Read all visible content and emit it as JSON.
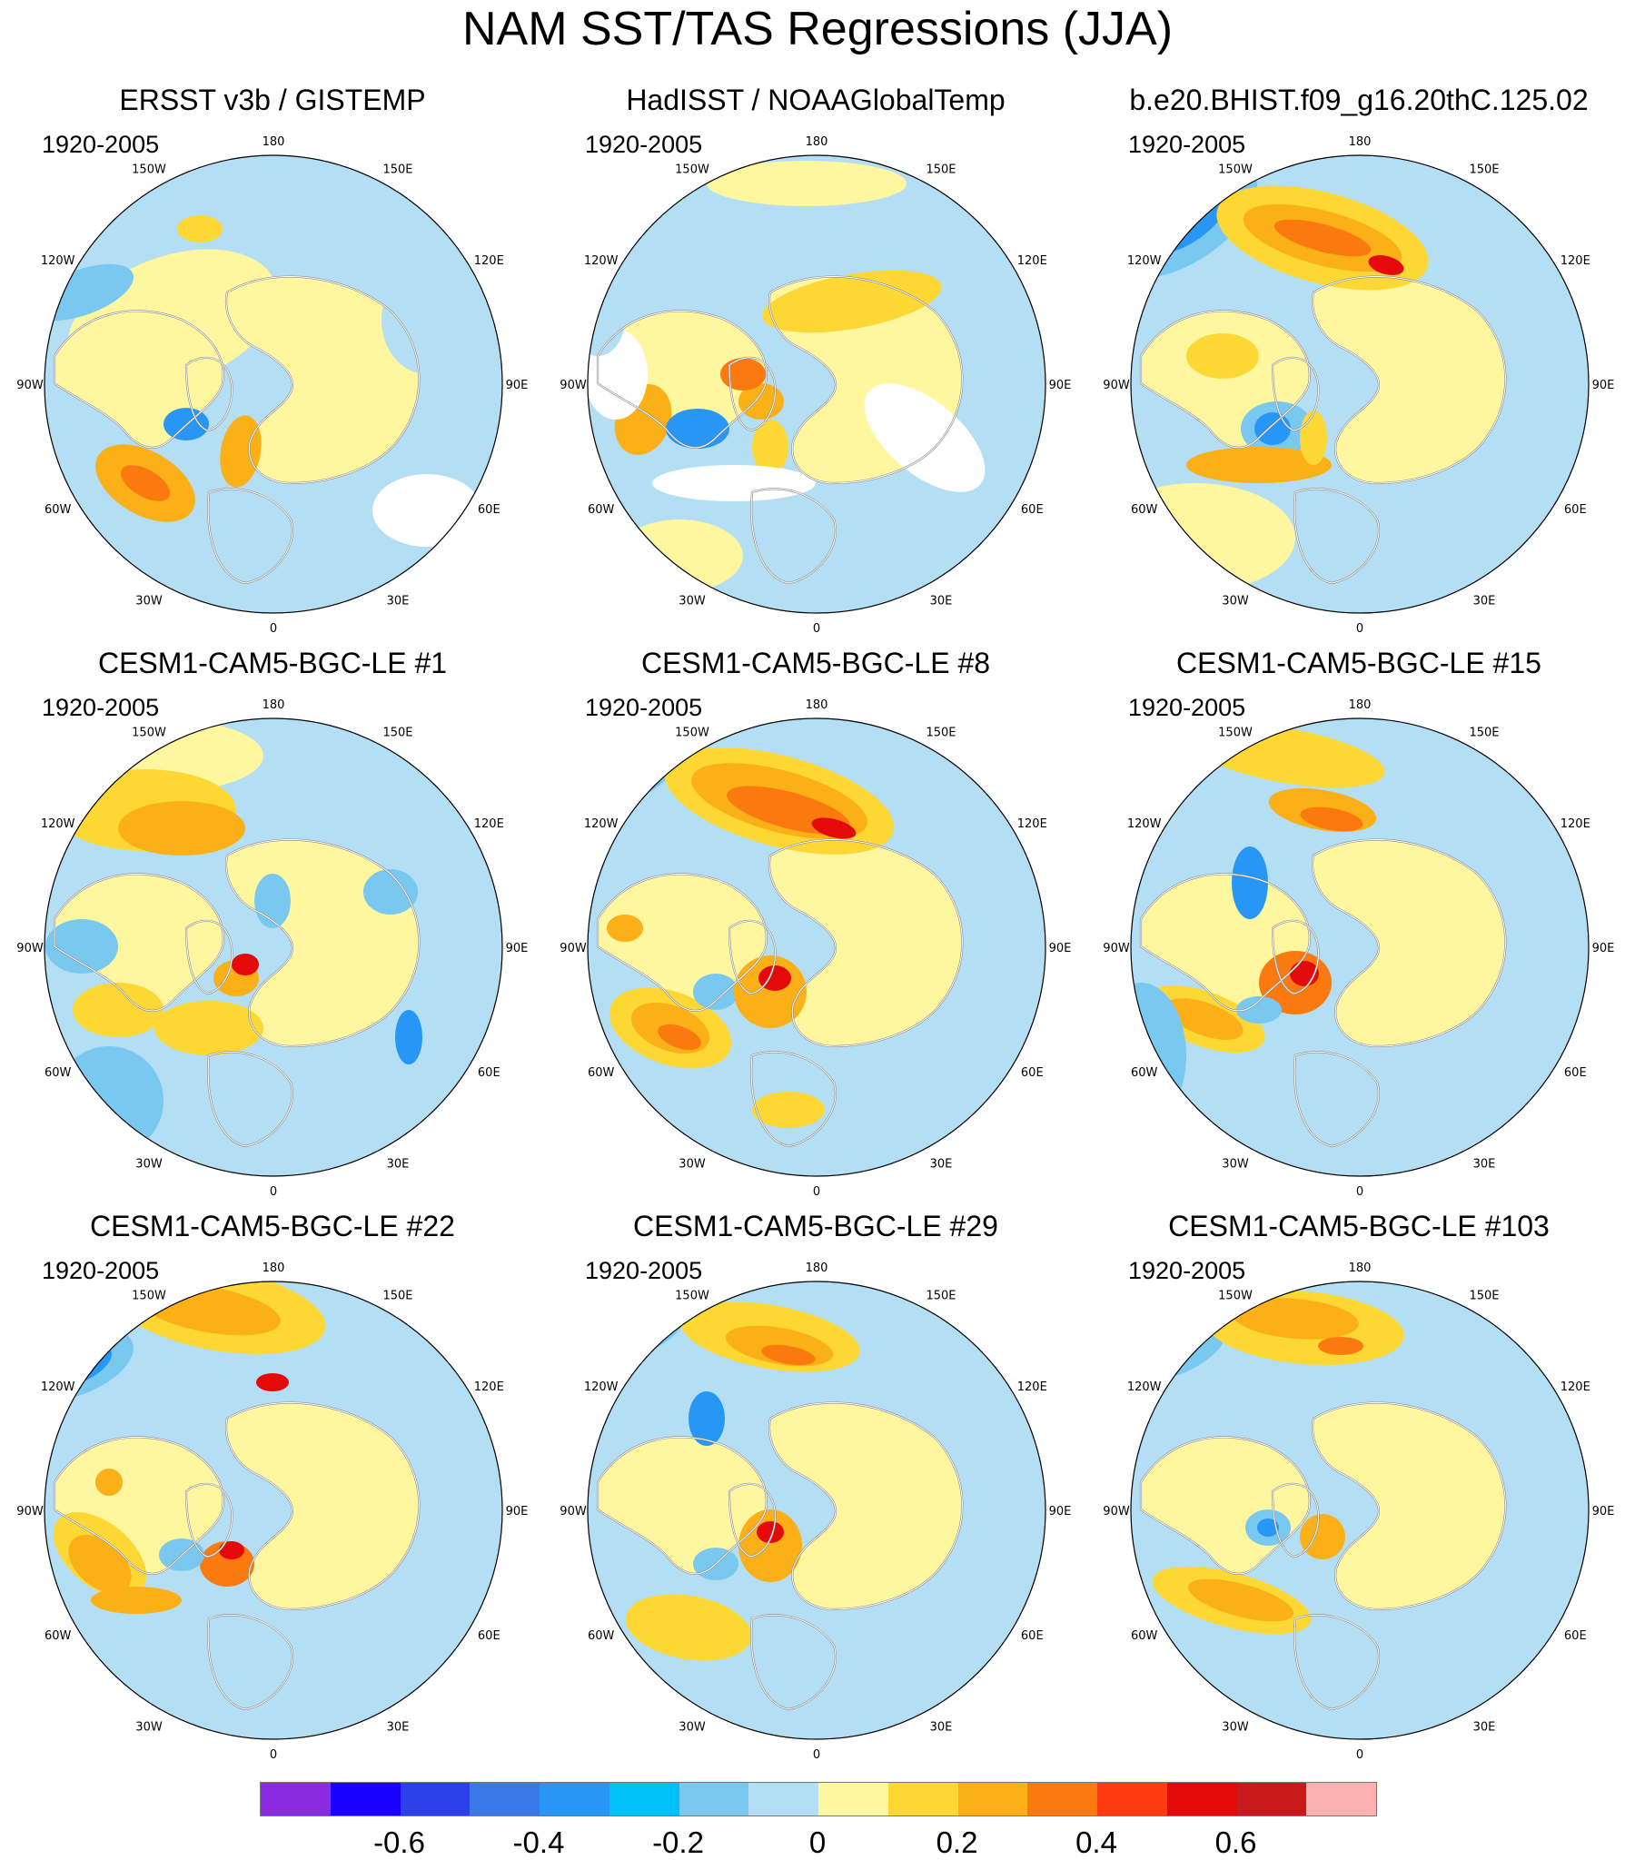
{
  "title": "NAM SST/TAS Regressions (JJA)",
  "period_label": "1920-2005",
  "lon_labels": [
    "180",
    "150E",
    "120E",
    "90E",
    "60E",
    "30E",
    "0",
    "30W",
    "60W",
    "90W",
    "120W",
    "150W"
  ],
  "panels": [
    {
      "title": "ERSST v3b / GISTEMP",
      "period": "1920-2005",
      "pattern": "obs1"
    },
    {
      "title": "HadISST / NOAAGlobalTemp",
      "period": "1920-2005",
      "pattern": "obs2"
    },
    {
      "title": "b.e20.BHIST.f09_g16.20thC.125.02",
      "period": "1920-2005",
      "pattern": "model"
    },
    {
      "title": "CESM1-CAM5-BGC-LE #1",
      "period": "1920-2005",
      "pattern": "le1"
    },
    {
      "title": "CESM1-CAM5-BGC-LE #8",
      "period": "1920-2005",
      "pattern": "le8"
    },
    {
      "title": "CESM1-CAM5-BGC-LE #15",
      "period": "1920-2005",
      "pattern": "le15"
    },
    {
      "title": "CESM1-CAM5-BGC-LE #22",
      "period": "1920-2005",
      "pattern": "le22"
    },
    {
      "title": "CESM1-CAM5-BGC-LE #29",
      "period": "1920-2005",
      "pattern": "le29"
    },
    {
      "title": "CESM1-CAM5-BGC-LE #103",
      "period": "1920-2005",
      "pattern": "le103"
    }
  ],
  "colorbar": {
    "colors": [
      "#8a2be2",
      "#1a00ff",
      "#2a40e8",
      "#3a78e8",
      "#2896f5",
      "#00c0f8",
      "#78c8f0",
      "#b4def4",
      "#fff7a0",
      "#fdd835",
      "#fbb018",
      "#fb7a10",
      "#ff3a10",
      "#e40a0a",
      "#c81a1a",
      "#fdb0b0"
    ],
    "tick_labels": [
      "-0.6",
      "-0.4",
      "-0.2",
      "0",
      "0.2",
      "0.4",
      "0.6"
    ],
    "tick_values": [
      -0.6,
      -0.4,
      -0.2,
      0,
      0.2,
      0.4,
      0.6
    ],
    "level_min": -0.8,
    "level_max": 0.8
  },
  "map_colors": {
    "ocean_neutral": "#b4def4",
    "land_neutral": "#fff7a0",
    "pos_weak": "#fdd835",
    "pos_mid": "#fbb018",
    "pos_strong": "#fb7a10",
    "pos_max": "#e40a0a",
    "neg_weak": "#78c8f0",
    "neg_mid": "#2896f5",
    "neg_strong": "#1a00ff",
    "missing": "#ffffff",
    "coast": "#888888"
  }
}
